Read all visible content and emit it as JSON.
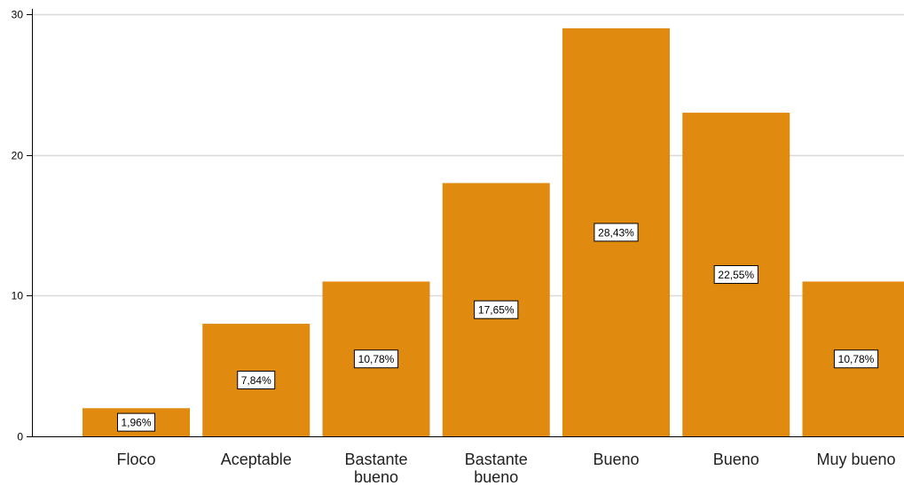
{
  "chart_data": {
    "type": "bar",
    "categories": [
      "Floco",
      "Aceptable",
      "Bastante bueno",
      "Bastante bueno",
      "Bueno",
      "Bueno",
      "Muy bueno"
    ],
    "category_lines": [
      [
        "Floco"
      ],
      [
        "Aceptable"
      ],
      [
        "Bastante",
        "bueno"
      ],
      [
        "Bastante",
        "bueno"
      ],
      [
        "Bueno"
      ],
      [
        "Bueno"
      ],
      [
        "Muy bueno"
      ]
    ],
    "values": [
      2,
      8,
      11,
      18,
      29,
      23,
      11
    ],
    "data_labels": [
      "1,96%",
      "7,84%",
      "10,78%",
      "17,65%",
      "28,43%",
      "22,55%",
      "10,78%"
    ],
    "title": "",
    "xlabel": "",
    "ylabel": "",
    "ylim": [
      0,
      30
    ],
    "yticks": [
      0,
      10,
      20,
      30
    ],
    "grid": true,
    "bar_color": "#E08A10",
    "grid_color": "#D9D9D9",
    "axis_color": "#000000"
  }
}
